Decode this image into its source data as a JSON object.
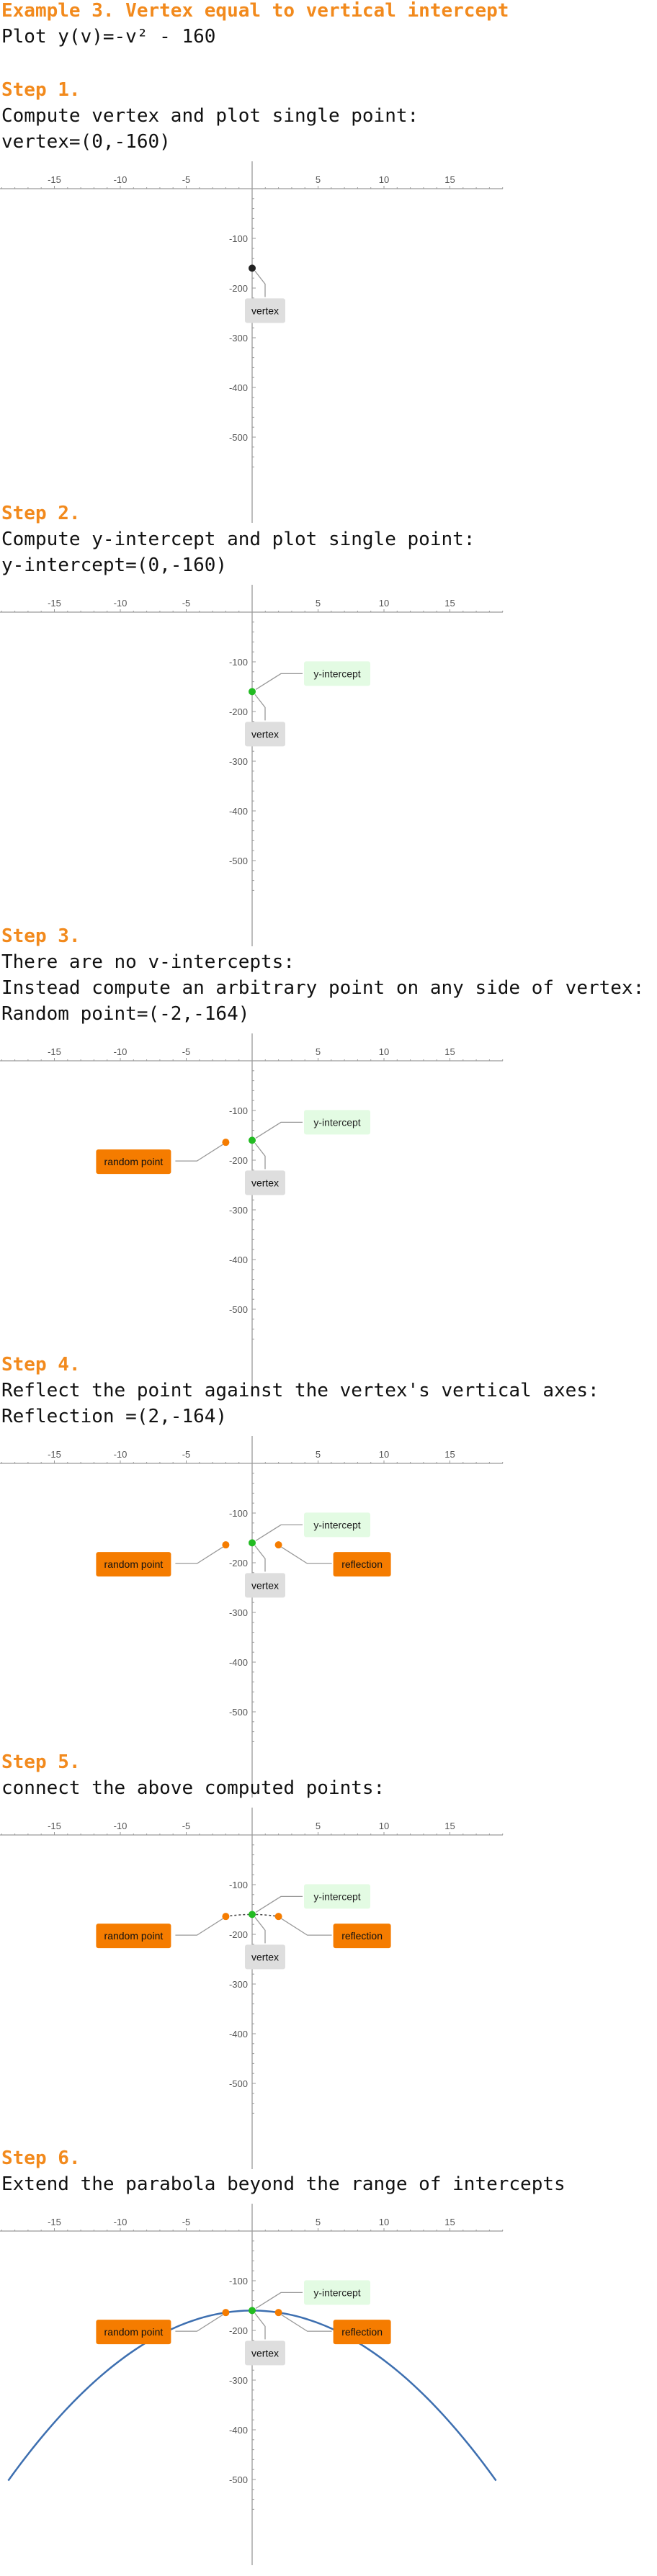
{
  "title": "Example 3. Vertex equal to vertical intercept",
  "subtitle": "Plot y(v)=-v² - 160",
  "colors": {
    "heading": "#f28a1d",
    "vertex": "#222222",
    "y_intercept": "#22bb22",
    "random_point": "#f57c00",
    "reflection": "#f57c00",
    "curve": "#3d6fb0",
    "vertex_box": "#dedede",
    "yint_box": "#e3fbe3",
    "orange_box": "#f57c00"
  },
  "steps": [
    {
      "heading": "Step 1.",
      "lines": [
        "Compute vertex and plot single point:",
        "vertex=(0,-160)"
      ]
    },
    {
      "heading": "Step 2.",
      "lines": [
        "Compute y-intercept and plot single point:",
        "y-intercept=(0,-160)"
      ]
    },
    {
      "heading": "Step 3.",
      "lines": [
        "There are no v-intercepts:",
        "Instead compute an arbitrary point on any side of vertex:",
        "Random point=(-2,-164)"
      ]
    },
    {
      "heading": "Step 4.",
      "lines": [
        "Reflect the point against the vertex's vertical axes:",
        "Reflection =(2,-164)"
      ]
    },
    {
      "heading": "Step 5.",
      "lines": [
        "connect the above computed points:"
      ]
    },
    {
      "heading": "Step 6.",
      "lines": [
        "Extend the parabola beyond the range of intercepts"
      ]
    }
  ],
  "point_labels": {
    "vertex": "vertex",
    "y_intercept": "y-intercept",
    "random_point": "random point",
    "reflection": "reflection"
  },
  "chart_data": [
    {
      "type": "scatter",
      "xlim": [
        -19,
        19
      ],
      "ylim": [
        -580,
        20
      ],
      "x_ticks": [
        -15,
        -10,
        -5,
        5,
        10,
        15
      ],
      "x_tick_labels": [
        "-15",
        "-10",
        "-5",
        "5",
        "10",
        "15"
      ],
      "y_ticks": [
        -100,
        -200,
        -300,
        -400,
        -500
      ],
      "y_tick_labels": [
        "-100",
        "-200",
        "-300",
        "-400",
        "-500"
      ],
      "points": [
        {
          "name": "vertex",
          "x": 0,
          "y": -160
        }
      ],
      "curve": null
    },
    {
      "type": "scatter",
      "xlim": [
        -19,
        19
      ],
      "ylim": [
        -580,
        20
      ],
      "x_ticks": [
        -15,
        -10,
        -5,
        5,
        10,
        15
      ],
      "x_tick_labels": [
        "-15",
        "-10",
        "-5",
        "5",
        "10",
        "15"
      ],
      "y_ticks": [
        -100,
        -200,
        -300,
        -400,
        -500
      ],
      "y_tick_labels": [
        "-100",
        "-200",
        "-300",
        "-400",
        "-500"
      ],
      "points": [
        {
          "name": "vertex",
          "x": 0,
          "y": -160
        },
        {
          "name": "y_intercept",
          "x": 0,
          "y": -160
        }
      ],
      "curve": null
    },
    {
      "type": "scatter",
      "xlim": [
        -19,
        19
      ],
      "ylim": [
        -580,
        20
      ],
      "x_ticks": [
        -15,
        -10,
        -5,
        5,
        10,
        15
      ],
      "x_tick_labels": [
        "-15",
        "-10",
        "-5",
        "5",
        "10",
        "15"
      ],
      "y_ticks": [
        -100,
        -200,
        -300,
        -400,
        -500
      ],
      "y_tick_labels": [
        "-100",
        "-200",
        "-300",
        "-400",
        "-500"
      ],
      "points": [
        {
          "name": "vertex",
          "x": 0,
          "y": -160
        },
        {
          "name": "y_intercept",
          "x": 0,
          "y": -160
        },
        {
          "name": "random_point",
          "x": -2,
          "y": -164
        }
      ],
      "curve": null
    },
    {
      "type": "scatter",
      "xlim": [
        -19,
        19
      ],
      "ylim": [
        -580,
        20
      ],
      "x_ticks": [
        -15,
        -10,
        -5,
        5,
        10,
        15
      ],
      "x_tick_labels": [
        "-15",
        "-10",
        "-5",
        "5",
        "10",
        "15"
      ],
      "y_ticks": [
        -100,
        -200,
        -300,
        -400,
        -500
      ],
      "y_tick_labels": [
        "-100",
        "-200",
        "-300",
        "-400",
        "-500"
      ],
      "points": [
        {
          "name": "vertex",
          "x": 0,
          "y": -160
        },
        {
          "name": "y_intercept",
          "x": 0,
          "y": -160
        },
        {
          "name": "random_point",
          "x": -2,
          "y": -164
        },
        {
          "name": "reflection",
          "x": 2,
          "y": -164
        }
      ],
      "curve": null
    },
    {
      "type": "line",
      "xlim": [
        -19,
        19
      ],
      "ylim": [
        -580,
        20
      ],
      "x_ticks": [
        -15,
        -10,
        -5,
        5,
        10,
        15
      ],
      "x_tick_labels": [
        "-15",
        "-10",
        "-5",
        "5",
        "10",
        "15"
      ],
      "y_ticks": [
        -100,
        -200,
        -300,
        -400,
        -500
      ],
      "y_tick_labels": [
        "-100",
        "-200",
        "-300",
        "-400",
        "-500"
      ],
      "points": [
        {
          "name": "vertex",
          "x": 0,
          "y": -160
        },
        {
          "name": "y_intercept",
          "x": 0,
          "y": -160
        },
        {
          "name": "random_point",
          "x": -2,
          "y": -164
        },
        {
          "name": "reflection",
          "x": 2,
          "y": -164
        }
      ],
      "curve": {
        "from": -2,
        "to": 2,
        "dashed": true
      }
    },
    {
      "type": "line",
      "xlim": [
        -19,
        19
      ],
      "ylim": [
        -580,
        20
      ],
      "x_ticks": [
        -15,
        -10,
        -5,
        5,
        10,
        15
      ],
      "x_tick_labels": [
        "-15",
        "-10",
        "-5",
        "5",
        "10",
        "15"
      ],
      "y_ticks": [
        -100,
        -200,
        -300,
        -400,
        -500
      ],
      "y_tick_labels": [
        "-100",
        "-200",
        "-300",
        "-400",
        "-500"
      ],
      "points": [
        {
          "name": "vertex",
          "x": 0,
          "y": -160
        },
        {
          "name": "y_intercept",
          "x": 0,
          "y": -160
        },
        {
          "name": "random_point",
          "x": -2,
          "y": -164
        },
        {
          "name": "reflection",
          "x": 2,
          "y": -164
        }
      ],
      "curve": {
        "from": -18.5,
        "to": 18.5,
        "dashed": false
      }
    }
  ]
}
